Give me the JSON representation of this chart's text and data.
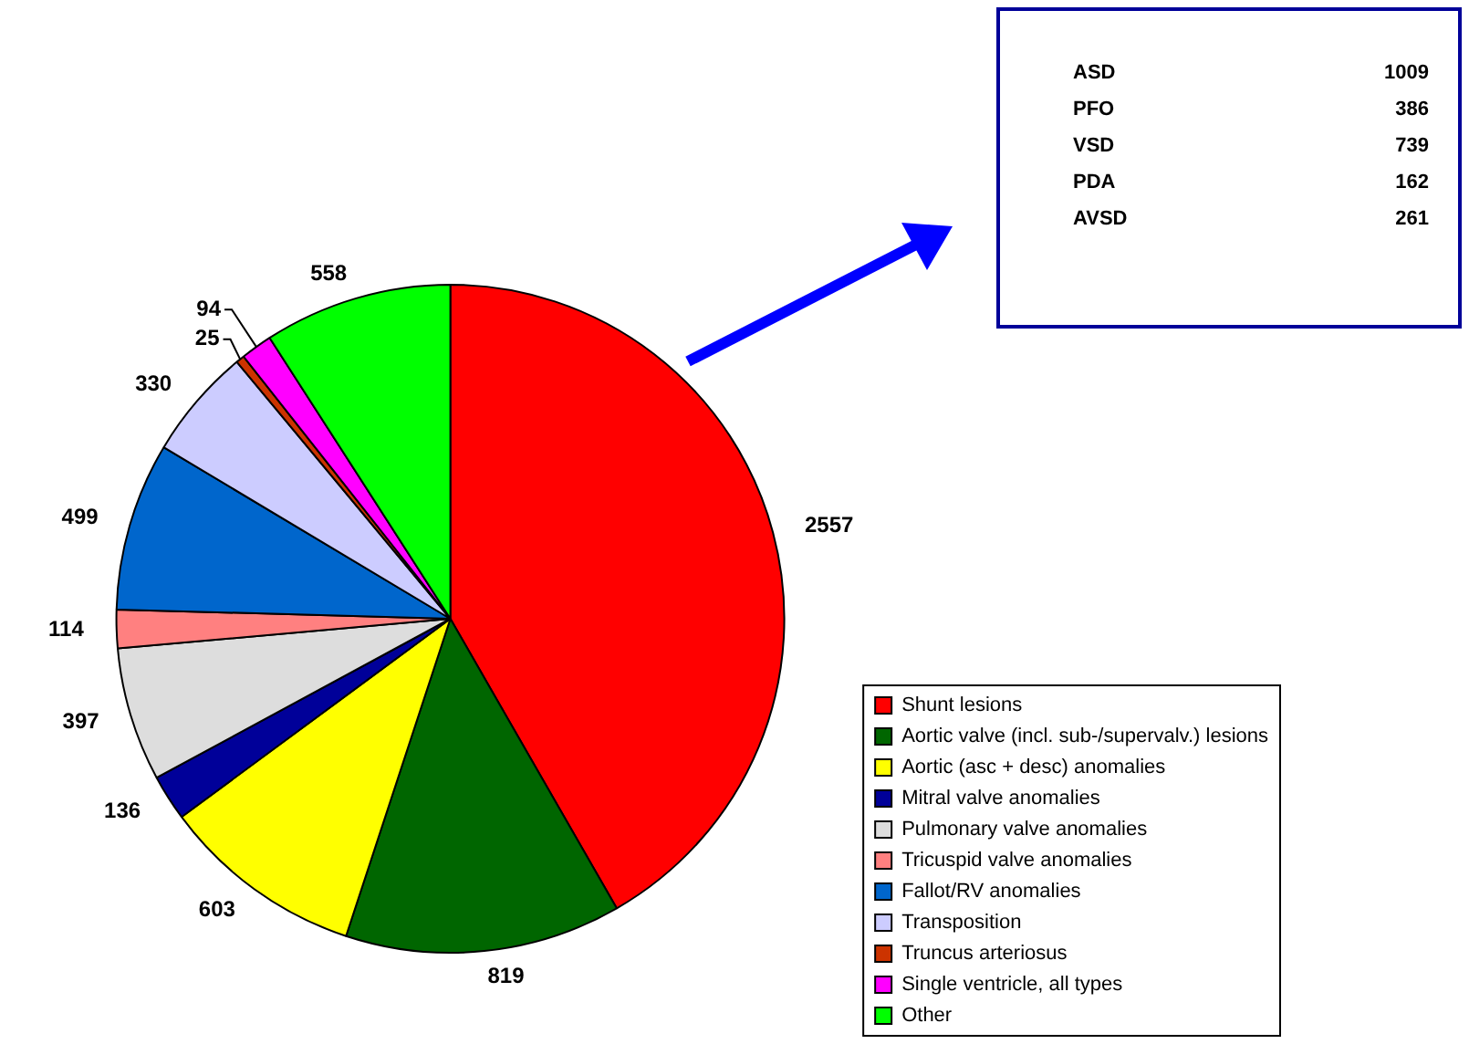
{
  "chart_data": {
    "type": "pie",
    "categories": [
      "Shunt lesions",
      "Aortic valve (incl. sub-/supervalv.) lesions",
      "Aortic (asc + desc) anomalies",
      "Mitral valve anomalies",
      "Pulmonary valve anomalies",
      "Tricuspid valve anomalies",
      "Fallot/RV anomalies",
      "Transposition",
      "Truncus arteriosus",
      "Single ventricle, all types",
      "Other"
    ],
    "values": [
      2557,
      819,
      603,
      136,
      397,
      114,
      499,
      330,
      25,
      94,
      558
    ],
    "colors": [
      "#ff0000",
      "#006600",
      "#ffff00",
      "#000099",
      "#dddddd",
      "#ff8080",
      "#0066cc",
      "#ccccff",
      "#cc3300",
      "#ff00ff",
      "#00ff00"
    ],
    "data_labels": true,
    "legend": "bottom right",
    "annotations": [
      "ASD 1009",
      "PFO 386",
      "VSD 739",
      "PDA 162",
      "AVSD 261"
    ]
  }
}
